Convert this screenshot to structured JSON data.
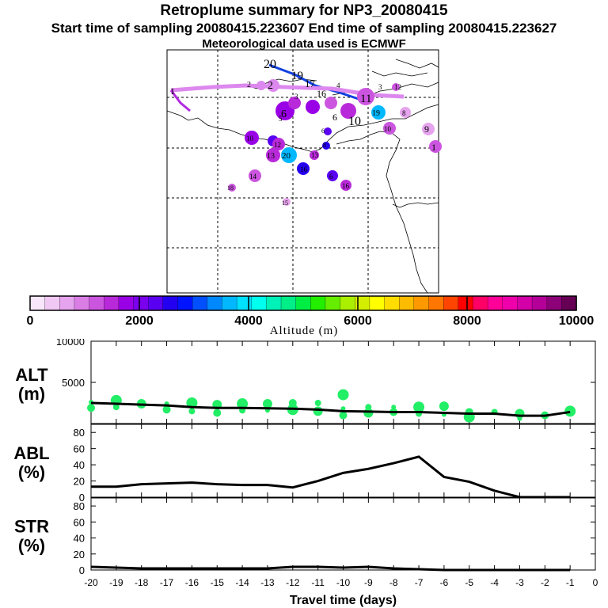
{
  "header": {
    "title": "Retroplume summary for NP3_20080415",
    "subtitle": "Start time of sampling 20080415.223607     End time of sampling 20080415.223627",
    "met_note": "Meteorological data used is ECMWF"
  },
  "colorbar": {
    "label": "Altitude  (m)",
    "ticks": [
      "0",
      "2000",
      "4000",
      "6000",
      "8000",
      "10000"
    ],
    "colors": [
      "#f8e6fa",
      "#f0c8f4",
      "#e6a4ee",
      "#da7ee6",
      "#cc55e0",
      "#b82ad9",
      "#9a00e6",
      "#7a00ee",
      "#5a00f2",
      "#2400f0",
      "#0014ff",
      "#0050ff",
      "#0088ff",
      "#00b8ff",
      "#00e0ff",
      "#00ffee",
      "#00f2b8",
      "#00ee88",
      "#00ee44",
      "#22ee00",
      "#66ee00",
      "#aaee00",
      "#d4ee00",
      "#ffff00",
      "#ffdd00",
      "#ffbb00",
      "#ff9900",
      "#ff7700",
      "#ff4400",
      "#ff0000",
      "#ff0066",
      "#ff0099",
      "#ee00aa",
      "#d400a8",
      "#b40099",
      "#8c0078",
      "#660055"
    ]
  },
  "map": {
    "labels": [
      "1",
      "2",
      "3",
      "4",
      "5",
      "6",
      "7",
      "8",
      "9",
      "10",
      "11",
      "12",
      "13",
      "14",
      "15",
      "16",
      "17",
      "18",
      "19",
      "20"
    ]
  },
  "chart_data": [
    {
      "type": "line",
      "panel": "ALT",
      "ylabel": "ALT\n(m)",
      "ylabel_lines": [
        "ALT",
        "(m)"
      ],
      "ylim": [
        0,
        10000
      ],
      "yticks": [
        "5000",
        "10000"
      ],
      "ytick_values": [
        5000,
        10000
      ],
      "xlim": [
        -20,
        0
      ],
      "x": [
        -20,
        -19,
        -18,
        -17,
        -16,
        -15,
        -14,
        -13,
        -12,
        -11,
        -10,
        -9,
        -8,
        -7,
        -6,
        -5,
        -4,
        -3,
        -2,
        -1
      ],
      "values": [
        2500,
        2400,
        2300,
        2200,
        2000,
        1900,
        1900,
        1850,
        1800,
        1700,
        1500,
        1450,
        1400,
        1400,
        1300,
        1200,
        1200,
        950,
        950,
        1400
      ],
      "scatter": [
        {
          "x": -20,
          "y": 2600
        },
        {
          "x": -20,
          "y": 1900
        },
        {
          "x": -19,
          "y": 2800
        },
        {
          "x": -19,
          "y": 2000
        },
        {
          "x": -18,
          "y": 2400
        },
        {
          "x": -17,
          "y": 2400
        },
        {
          "x": -17,
          "y": 1700
        },
        {
          "x": -16,
          "y": 2500
        },
        {
          "x": -16,
          "y": 1500
        },
        {
          "x": -15,
          "y": 2300
        },
        {
          "x": -15,
          "y": 1900
        },
        {
          "x": -15,
          "y": 1300
        },
        {
          "x": -14,
          "y": 2400
        },
        {
          "x": -14,
          "y": 1600
        },
        {
          "x": -13,
          "y": 2400
        },
        {
          "x": -13,
          "y": 1600
        },
        {
          "x": -12,
          "y": 2500
        },
        {
          "x": -12,
          "y": 1700
        },
        {
          "x": -11,
          "y": 2500
        },
        {
          "x": -11,
          "y": 1500
        },
        {
          "x": -10,
          "y": 1800
        },
        {
          "x": -10,
          "y": 1000
        },
        {
          "x": -10,
          "y": 3500
        },
        {
          "x": -9,
          "y": 2000
        },
        {
          "x": -9,
          "y": 1300
        },
        {
          "x": -8,
          "y": 2000
        },
        {
          "x": -8,
          "y": 1400
        },
        {
          "x": -7,
          "y": 2000
        },
        {
          "x": -7,
          "y": 1200
        },
        {
          "x": -6,
          "y": 2100
        },
        {
          "x": -6,
          "y": 1100
        },
        {
          "x": -5,
          "y": 1400
        },
        {
          "x": -5,
          "y": 800
        },
        {
          "x": -4,
          "y": 1400
        },
        {
          "x": -3,
          "y": 1200
        },
        {
          "x": -3,
          "y": 600
        },
        {
          "x": -2,
          "y": 1000
        },
        {
          "x": -1,
          "y": 1500
        }
      ],
      "marker_color": "#22ee66"
    },
    {
      "type": "line",
      "panel": "ABL",
      "ylabel_lines": [
        "ABL",
        "(%)"
      ],
      "ylim": [
        0,
        90
      ],
      "yticks": [
        "0",
        "20",
        "40",
        "60",
        "80"
      ],
      "ytick_values": [
        0,
        20,
        40,
        60,
        80
      ],
      "xlim": [
        -20,
        0
      ],
      "x": [
        -20,
        -19,
        -18,
        -17,
        -16,
        -15,
        -14,
        -13,
        -12,
        -11,
        -10,
        -9,
        -8,
        -7,
        -6,
        -5,
        -4,
        -3,
        -2,
        -1
      ],
      "values": [
        13,
        13,
        16,
        17,
        18,
        16,
        15,
        15,
        12,
        20,
        30,
        35,
        42,
        50,
        25,
        19,
        8,
        0,
        0,
        0
      ]
    },
    {
      "type": "line",
      "panel": "STR",
      "ylabel_lines": [
        "STR",
        "(%)"
      ],
      "ylim": [
        0,
        90
      ],
      "yticks": [
        "0",
        "20",
        "40",
        "60",
        "80"
      ],
      "ytick_values": [
        0,
        20,
        40,
        60,
        80
      ],
      "xlim": [
        -20,
        0
      ],
      "x": [
        -20,
        -19,
        -18,
        -17,
        -16,
        -15,
        -14,
        -13,
        -12,
        -11,
        -10,
        -9,
        -8,
        -7,
        -6,
        -5,
        -4,
        -3,
        -2,
        -1
      ],
      "values": [
        4,
        3,
        2,
        2,
        2,
        2,
        2,
        2,
        4,
        4,
        3,
        4,
        2,
        1,
        0,
        0,
        0,
        0,
        0,
        0
      ],
      "xlabel": "Travel time (days)",
      "xticks": [
        "-20",
        "-19",
        "-18",
        "-17",
        "-16",
        "-15",
        "-14",
        "-13",
        "-12",
        "-11",
        "-10",
        "-9",
        "-8",
        "-7",
        "-6",
        "-5",
        "-4",
        "-3",
        "-2",
        "-1",
        "0"
      ],
      "xtick_values": [
        -20,
        -19,
        -18,
        -17,
        -16,
        -15,
        -14,
        -13,
        -12,
        -11,
        -10,
        -9,
        -8,
        -7,
        -6,
        -5,
        -4,
        -3,
        -2,
        -1,
        0
      ]
    }
  ]
}
